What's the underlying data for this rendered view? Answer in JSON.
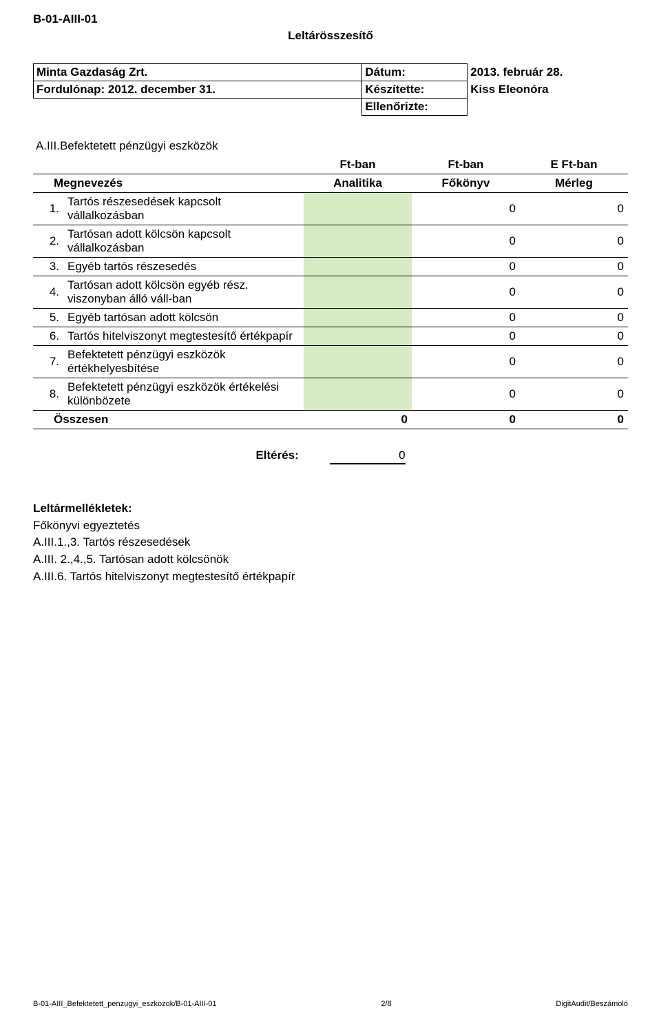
{
  "colors": {
    "background": "#ffffff",
    "text": "#000000",
    "cell_highlight": "#d6eac3",
    "border": "#000000"
  },
  "typography": {
    "base_font_family": "Arial",
    "base_font_size_pt": 12,
    "bold_weight": 700
  },
  "doc_code": "B-01-AIII-01",
  "title": "Leltárösszesítő",
  "header": {
    "rows": [
      {
        "label": "Minta Gazdaság Zrt.",
        "key": "Dátum:",
        "value": "2013. február 28."
      },
      {
        "label": "Fordulónap: 2012. december 31.",
        "key": "Készítette:",
        "value": "Kiss Eleonóra"
      },
      {
        "label": "",
        "key": "Ellenőrizte:",
        "value": ""
      }
    ]
  },
  "section_heading": "A.III.Befektetett pénzügyi eszközök",
  "table": {
    "type": "table",
    "units": [
      "",
      "Ft-ban",
      "Ft-ban",
      "E Ft-ban"
    ],
    "columns": [
      "Megnevezés",
      "Analitika",
      "Főkönyv",
      "Mérleg"
    ],
    "column_align": [
      "left",
      "right",
      "right",
      "right"
    ],
    "highlight_columns": [
      1
    ],
    "rows": [
      {
        "n": "1.",
        "desc": "Tartós részesedések kapcsolt vállalkozásban",
        "analitika": "",
        "fokonyv": "0",
        "merleg": "0"
      },
      {
        "n": "2.",
        "desc": "Tartósan adott kölcsön kapcsolt vállalkozásban",
        "analitika": "",
        "fokonyv": "0",
        "merleg": "0"
      },
      {
        "n": "3.",
        "desc": "Egyéb tartós részesedés",
        "analitika": "",
        "fokonyv": "0",
        "merleg": "0"
      },
      {
        "n": "4.",
        "desc": "Tartósan adott kölcsön egyéb rész. viszonyban álló váll-ban",
        "analitika": "",
        "fokonyv": "0",
        "merleg": "0"
      },
      {
        "n": "5.",
        "desc": "Egyéb tartósan adott kölcsön",
        "analitika": "",
        "fokonyv": "0",
        "merleg": "0"
      },
      {
        "n": "6.",
        "desc": "Tartós hitelviszonyt megtestesítő értékpapír",
        "analitika": "",
        "fokonyv": "0",
        "merleg": "0"
      },
      {
        "n": "7.",
        "desc": "Befektetett pénzügyi eszközök értékhelyesbítése",
        "analitika": "",
        "fokonyv": "0",
        "merleg": "0"
      },
      {
        "n": "8.",
        "desc": "Befektetett pénzügyi eszközök értékelési különbözete",
        "analitika": "",
        "fokonyv": "0",
        "merleg": "0"
      }
    ],
    "total": {
      "label": "Összesen",
      "analitika": "0",
      "fokonyv": "0",
      "merleg": "0"
    }
  },
  "diff": {
    "label": "Eltérés:",
    "value": "0"
  },
  "attachments": {
    "heading": "Leltármellékletek:",
    "lines": [
      "Főkönyvi egyeztetés",
      "A.III.1.,3. Tartós részesedések",
      "A.III. 2.,4.,5. Tartósan adott kölcsönök",
      "A.III.6. Tartós hitelviszonyt megtestesítő értékpapír"
    ]
  },
  "footer": {
    "left": "B-01-AIII_Befektetett_penzugyi_eszkozok/B-01-AIII-01",
    "center": "2/8",
    "right": "DigitAudit/Beszámoló"
  }
}
